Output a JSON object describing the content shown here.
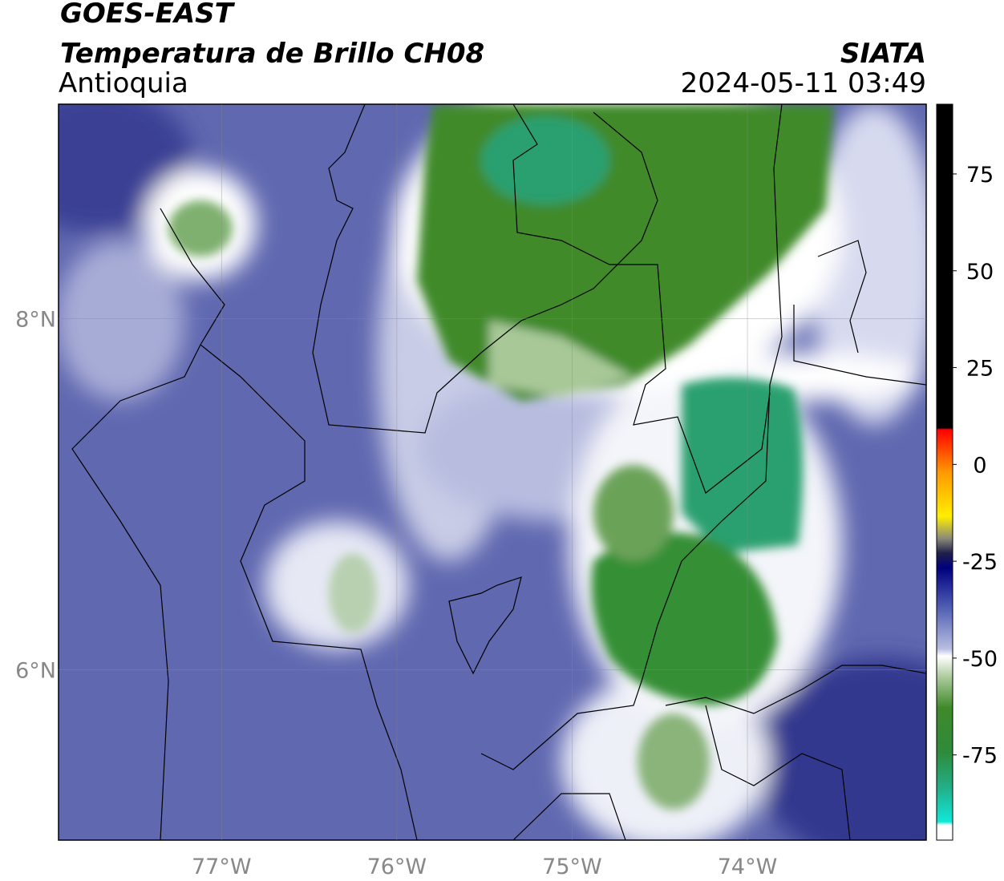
{
  "header": {
    "title": "GOES-EAST",
    "subtitle": "Temperatura de Brillo CH08",
    "region": "Antioquia",
    "source": "SIATA",
    "timestamp": "2024-05-11 03:49"
  },
  "map": {
    "xlim": [
      -77.93,
      -72.98
    ],
    "ylim": [
      5.03,
      9.22
    ],
    "xticks": [
      {
        "value": -77,
        "label": "77°W"
      },
      {
        "value": -76,
        "label": "76°W"
      },
      {
        "value": -75,
        "label": "75°W"
      },
      {
        "value": -74,
        "label": "74°W"
      }
    ],
    "yticks": [
      {
        "value": 6,
        "label": "6°N"
      },
      {
        "value": 8,
        "label": "8°N"
      }
    ],
    "grid": true
  },
  "colorbar": {
    "range": [
      -97,
      93
    ],
    "ticks": [
      75,
      50,
      25,
      0,
      -25,
      -50,
      -75
    ]
  }
}
